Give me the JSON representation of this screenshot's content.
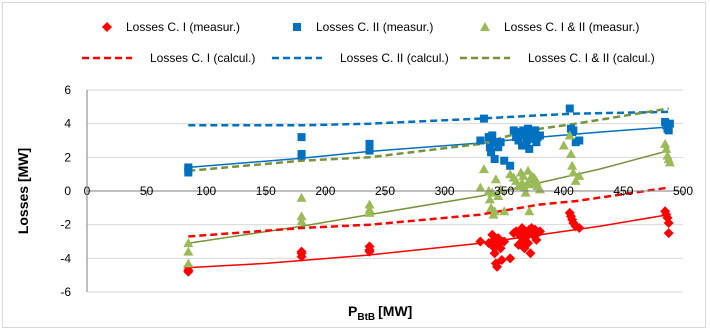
{
  "chart_data": {
    "type": "scatter",
    "title": "",
    "xlabel_main": "P",
    "xlabel_sub": "BtB",
    "xlabel_unit": "[MW]",
    "ylabel": "Losses [MW]",
    "xlim": [
      0,
      500
    ],
    "ylim": [
      -6,
      6
    ],
    "x_ticks": [
      "0",
      "50",
      "100",
      "150",
      "200",
      "250",
      "300",
      "350",
      "400",
      "450",
      "500"
    ],
    "y_ticks": [
      "-6",
      "-4",
      "-2",
      "0",
      "2",
      "4",
      "6"
    ],
    "grid": "horizontal",
    "legend_position": "top",
    "colors": {
      "c1": "#ff0000",
      "c2": "#0070c0",
      "c12": "#9bbb59",
      "c12_line": "#77933c"
    },
    "series": [
      {
        "name": "Losses C. I (measur.)",
        "kind": "points",
        "marker": "diamond",
        "color": "#ff0000",
        "points": [
          [
            85,
            -4.5
          ],
          [
            85,
            -4.7
          ],
          [
            85,
            -4.8
          ],
          [
            180,
            -3.6
          ],
          [
            180,
            -3.7
          ],
          [
            180,
            -3.9
          ],
          [
            237,
            -3.3
          ],
          [
            237,
            -3.5
          ],
          [
            237,
            -3.6
          ],
          [
            330,
            -3.0
          ],
          [
            337,
            -3.1
          ],
          [
            340,
            -2.6
          ],
          [
            340,
            -3.0
          ],
          [
            341,
            -3.3
          ],
          [
            342,
            -3.4
          ],
          [
            342,
            -3.7
          ],
          [
            343,
            -4.3
          ],
          [
            344,
            -4.5
          ],
          [
            345,
            -2.8
          ],
          [
            346,
            -3.1
          ],
          [
            347,
            -3.4
          ],
          [
            348,
            -4.1
          ],
          [
            350,
            -3.0
          ],
          [
            355,
            -4.0
          ],
          [
            358,
            -2.5
          ],
          [
            360,
            -2.4
          ],
          [
            362,
            -3.2
          ],
          [
            364,
            -2.7
          ],
          [
            365,
            -2.2
          ],
          [
            366,
            -2.9
          ],
          [
            367,
            -3.4
          ],
          [
            368,
            -2.4
          ],
          [
            369,
            -2.7
          ],
          [
            370,
            -3.1
          ],
          [
            371,
            -2.3
          ],
          [
            372,
            -3.7
          ],
          [
            373,
            -2.2
          ],
          [
            374,
            -2.6
          ],
          [
            375,
            -2.5
          ],
          [
            376,
            -2.3
          ],
          [
            377,
            -2.9
          ],
          [
            378,
            -2.5
          ],
          [
            380,
            -2.4
          ],
          [
            405,
            -1.3
          ],
          [
            406,
            -1.5
          ],
          [
            407,
            -1.7
          ],
          [
            408,
            -1.9
          ],
          [
            410,
            -2.1
          ],
          [
            413,
            -2.2
          ],
          [
            485,
            -1.2
          ],
          [
            486,
            -1.4
          ],
          [
            487,
            -1.6
          ],
          [
            488,
            -1.9
          ],
          [
            488,
            -2.5
          ]
        ]
      },
      {
        "name": "Losses C. II (measur.)",
        "kind": "points",
        "marker": "square",
        "color": "#0070c0",
        "points": [
          [
            85,
            1.4
          ],
          [
            85,
            1.3
          ],
          [
            85,
            1.1
          ],
          [
            180,
            3.2
          ],
          [
            180,
            2.2
          ],
          [
            180,
            2.1
          ],
          [
            237,
            2.8
          ],
          [
            237,
            2.6
          ],
          [
            237,
            2.4
          ],
          [
            330,
            3.0
          ],
          [
            333,
            4.3
          ],
          [
            337,
            3.2
          ],
          [
            338,
            2.6
          ],
          [
            339,
            2.3
          ],
          [
            340,
            3.3
          ],
          [
            341,
            2.9
          ],
          [
            342,
            1.9
          ],
          [
            345,
            2.6
          ],
          [
            347,
            2.9
          ],
          [
            350,
            1.8
          ],
          [
            355,
            1.5
          ],
          [
            358,
            3.6
          ],
          [
            360,
            3.2
          ],
          [
            362,
            3.0
          ],
          [
            364,
            3.5
          ],
          [
            365,
            2.7
          ],
          [
            366,
            3.6
          ],
          [
            367,
            3.4
          ],
          [
            368,
            2.7
          ],
          [
            369,
            3.0
          ],
          [
            370,
            3.7
          ],
          [
            371,
            2.5
          ],
          [
            372,
            3.3
          ],
          [
            373,
            3.1
          ],
          [
            374,
            3.5
          ],
          [
            375,
            3.4
          ],
          [
            376,
            3.6
          ],
          [
            377,
            2.9
          ],
          [
            378,
            3.2
          ],
          [
            380,
            3.3
          ],
          [
            405,
            4.9
          ],
          [
            406,
            3.7
          ],
          [
            407,
            3.5
          ],
          [
            408,
            3.6
          ],
          [
            410,
            2.9
          ],
          [
            413,
            3.0
          ],
          [
            485,
            4.1
          ],
          [
            486,
            3.9
          ],
          [
            487,
            3.7
          ],
          [
            488,
            3.6
          ],
          [
            489,
            4.0
          ]
        ]
      },
      {
        "name": "Losses C. I & II (measur.)",
        "kind": "points",
        "marker": "triangle",
        "color": "#9bbb59",
        "points": [
          [
            85,
            -3.1
          ],
          [
            85,
            -3.6
          ],
          [
            85,
            -4.3
          ],
          [
            180,
            -0.4
          ],
          [
            180,
            -1.5
          ],
          [
            180,
            -1.8
          ],
          [
            237,
            -0.8
          ],
          [
            237,
            -1.1
          ],
          [
            237,
            -1.3
          ],
          [
            330,
            0.2
          ],
          [
            333,
            1.3
          ],
          [
            337,
            0.0
          ],
          [
            338,
            -0.5
          ],
          [
            339,
            -1.0
          ],
          [
            340,
            -0.1
          ],
          [
            341,
            -1.4
          ],
          [
            342,
            -1.2
          ],
          [
            343,
            0.7
          ],
          [
            345,
            -0.3
          ],
          [
            347,
            0.1
          ],
          [
            350,
            -1.2
          ],
          [
            355,
            1.0
          ],
          [
            358,
            0.8
          ],
          [
            360,
            0.6
          ],
          [
            362,
            0.3
          ],
          [
            364,
            1.1
          ],
          [
            365,
            0.5
          ],
          [
            366,
            0.9
          ],
          [
            367,
            0.2
          ],
          [
            368,
            -0.1
          ],
          [
            369,
            0.4
          ],
          [
            370,
            1.2
          ],
          [
            371,
            -1.2
          ],
          [
            372,
            0.7
          ],
          [
            373,
            0.9
          ],
          [
            374,
            0.5
          ],
          [
            375,
            0.8
          ],
          [
            376,
            0.4
          ],
          [
            377,
            0.6
          ],
          [
            378,
            0.3
          ],
          [
            380,
            0.1
          ],
          [
            400,
            2.7
          ],
          [
            405,
            3.3
          ],
          [
            406,
            2.2
          ],
          [
            407,
            1.5
          ],
          [
            408,
            1.1
          ],
          [
            410,
            0.6
          ],
          [
            413,
            0.9
          ],
          [
            485,
            2.8
          ],
          [
            486,
            2.5
          ],
          [
            487,
            2.1
          ],
          [
            488,
            1.9
          ],
          [
            489,
            1.7
          ]
        ]
      },
      {
        "name": "Losses C. I (calcul.)",
        "kind": "line",
        "dash": true,
        "color": "#ff0000",
        "points": [
          [
            85,
            -2.7
          ],
          [
            180,
            -2.2
          ],
          [
            237,
            -2.0
          ],
          [
            330,
            -1.4
          ],
          [
            355,
            -1.1
          ],
          [
            380,
            -0.8
          ],
          [
            410,
            -0.6
          ],
          [
            488,
            0.2
          ]
        ]
      },
      {
        "name": "Losses C. II (calcul.)",
        "kind": "line",
        "dash": true,
        "color": "#0070c0",
        "points": [
          [
            85,
            3.9
          ],
          [
            180,
            3.9
          ],
          [
            237,
            4.0
          ],
          [
            330,
            4.3
          ],
          [
            355,
            4.4
          ],
          [
            380,
            4.5
          ],
          [
            410,
            4.6
          ],
          [
            488,
            4.7
          ]
        ]
      },
      {
        "name": "Losses C. I & II (calcul.)",
        "kind": "line",
        "dash": true,
        "color": "#77933c",
        "points": [
          [
            85,
            1.2
          ],
          [
            180,
            1.8
          ],
          [
            237,
            2.0
          ],
          [
            330,
            2.8
          ],
          [
            355,
            3.3
          ],
          [
            380,
            3.7
          ],
          [
            410,
            4.0
          ],
          [
            488,
            4.9
          ]
        ]
      },
      {
        "kind": "trend",
        "color": "#ff0000",
        "points": [
          [
            85,
            -4.55
          ],
          [
            150,
            -4.3
          ],
          [
            237,
            -3.8
          ],
          [
            330,
            -3.1
          ],
          [
            380,
            -2.6
          ],
          [
            430,
            -2.1
          ],
          [
            488,
            -1.4
          ]
        ]
      },
      {
        "kind": "trend",
        "color": "#0070c0",
        "points": [
          [
            85,
            1.4
          ],
          [
            180,
            1.95
          ],
          [
            237,
            2.35
          ],
          [
            330,
            2.85
          ],
          [
            380,
            3.2
          ],
          [
            430,
            3.5
          ],
          [
            488,
            3.8
          ]
        ]
      },
      {
        "kind": "trend",
        "color": "#77933c",
        "points": [
          [
            85,
            -3.1
          ],
          [
            180,
            -2.1
          ],
          [
            237,
            -1.4
          ],
          [
            330,
            -0.3
          ],
          [
            380,
            0.5
          ],
          [
            430,
            1.3
          ],
          [
            488,
            2.4
          ]
        ]
      }
    ]
  }
}
